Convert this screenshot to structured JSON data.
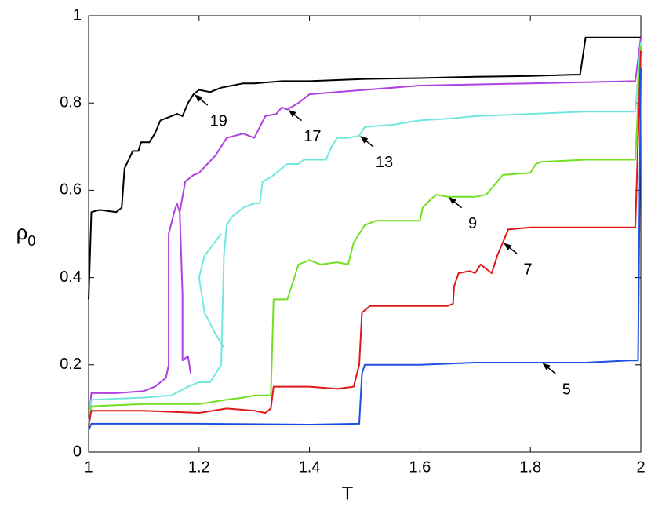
{
  "chart_data": {
    "type": "line",
    "xlabel": "T",
    "ylabel": "ρ",
    "ylabel_subscript": "0",
    "xlim": [
      1,
      2
    ],
    "xticks": [
      1,
      1.2,
      1.4,
      1.6,
      1.8,
      2
    ],
    "ylim": [
      0,
      1
    ],
    "yticks": [
      0,
      0.2,
      0.4,
      0.6,
      0.8,
      1
    ],
    "grid": false,
    "series": [
      {
        "name": "19",
        "color": "#000000",
        "x": [
          1,
          1.005,
          1.02,
          1.05,
          1.06,
          1.065,
          1.08,
          1.09,
          1.095,
          1.11,
          1.12,
          1.13,
          1.15,
          1.16,
          1.17,
          1.18,
          1.19,
          1.2,
          1.22,
          1.24,
          1.26,
          1.28,
          1.3,
          1.35,
          1.4,
          1.5,
          1.6,
          1.7,
          1.8,
          1.88,
          1.89,
          1.9,
          1.95,
          2
        ],
        "values": [
          0.35,
          0.55,
          0.555,
          0.55,
          0.56,
          0.65,
          0.69,
          0.69,
          0.71,
          0.71,
          0.73,
          0.76,
          0.77,
          0.775,
          0.77,
          0.8,
          0.82,
          0.83,
          0.825,
          0.835,
          0.84,
          0.845,
          0.845,
          0.85,
          0.85,
          0.855,
          0.857,
          0.86,
          0.862,
          0.865,
          0.865,
          0.95,
          0.95,
          0.95
        ]
      },
      {
        "name": "17",
        "color": "#b040e0",
        "x": [
          1,
          1.005,
          1.05,
          1.1,
          1.12,
          1.14,
          1.145,
          1.145,
          1.155,
          1.16,
          1.165,
          1.17,
          1.17,
          1.18,
          1.185,
          null,
          1.165,
          1.175,
          1.19,
          1.2,
          1.23,
          1.25,
          1.28,
          1.3,
          1.32,
          1.34,
          1.35,
          1.36,
          1.38,
          1.4,
          1.45,
          1.5,
          1.6,
          1.8,
          1.99,
          2
        ],
        "values": [
          0.06,
          0.135,
          0.135,
          0.14,
          0.15,
          0.17,
          0.2,
          0.5,
          0.55,
          0.57,
          0.55,
          0.36,
          0.21,
          0.22,
          0.18,
          null,
          0.55,
          0.62,
          0.635,
          0.64,
          0.68,
          0.72,
          0.73,
          0.72,
          0.77,
          0.775,
          0.79,
          0.785,
          0.8,
          0.82,
          0.825,
          0.83,
          0.84,
          0.845,
          0.85,
          0.95
        ]
      },
      {
        "name": "13",
        "color": "#70e8e0",
        "x": [
          1,
          1.005,
          1.1,
          1.15,
          1.18,
          1.2,
          1.22,
          1.24,
          1.245,
          1.25,
          1.26,
          1.27,
          1.28,
          1.3,
          1.31,
          1.315,
          1.33,
          1.34,
          1.36,
          1.38,
          1.39,
          1.43,
          1.44,
          1.45,
          1.47,
          1.49,
          1.5,
          1.55,
          1.6,
          1.66,
          1.7,
          1.8,
          1.9,
          1.99,
          2,
          null,
          1.245,
          1.23,
          1.21,
          1.2,
          1.21,
          1.24
        ],
        "values": [
          0.06,
          0.12,
          0.125,
          0.13,
          0.15,
          0.16,
          0.16,
          0.2,
          0.45,
          0.52,
          0.54,
          0.55,
          0.56,
          0.57,
          0.57,
          0.62,
          0.63,
          0.64,
          0.66,
          0.66,
          0.67,
          0.67,
          0.7,
          0.72,
          0.72,
          0.725,
          0.745,
          0.75,
          0.76,
          0.765,
          0.77,
          0.775,
          0.78,
          0.78,
          0.94,
          null,
          0.24,
          0.27,
          0.32,
          0.4,
          0.45,
          0.5
        ]
      },
      {
        "name": "9",
        "color": "#70e020",
        "x": [
          1,
          1.005,
          1.1,
          1.2,
          1.25,
          1.28,
          1.3,
          1.33,
          1.335,
          1.36,
          1.37,
          1.38,
          1.4,
          1.42,
          1.45,
          1.47,
          1.48,
          1.5,
          1.52,
          1.58,
          1.6,
          1.605,
          1.62,
          1.63,
          1.65,
          1.7,
          1.72,
          1.74,
          1.75,
          1.8,
          1.81,
          1.82,
          1.9,
          1.99,
          2
        ],
        "values": [
          0.06,
          0.105,
          0.11,
          0.11,
          0.12,
          0.125,
          0.13,
          0.13,
          0.35,
          0.35,
          0.39,
          0.43,
          0.44,
          0.43,
          0.435,
          0.43,
          0.48,
          0.52,
          0.53,
          0.53,
          0.53,
          0.56,
          0.58,
          0.59,
          0.585,
          0.585,
          0.59,
          0.62,
          0.635,
          0.64,
          0.66,
          0.665,
          0.67,
          0.67,
          0.93
        ]
      },
      {
        "name": "7",
        "color": "#e01818",
        "x": [
          1,
          1.005,
          1.1,
          1.2,
          1.25,
          1.3,
          1.32,
          1.33,
          1.335,
          1.4,
          1.45,
          1.48,
          1.49,
          1.495,
          1.51,
          1.6,
          1.65,
          1.66,
          1.662,
          1.67,
          1.69,
          1.7,
          1.71,
          1.73,
          1.74,
          1.75,
          1.76,
          1.8,
          1.9,
          1.99,
          2
        ],
        "values": [
          0.06,
          0.095,
          0.095,
          0.09,
          0.1,
          0.095,
          0.09,
          0.1,
          0.15,
          0.15,
          0.145,
          0.15,
          0.2,
          0.32,
          0.335,
          0.335,
          0.335,
          0.34,
          0.38,
          0.41,
          0.415,
          0.41,
          0.43,
          0.41,
          0.45,
          0.48,
          0.51,
          0.515,
          0.515,
          0.515,
          0.92
        ]
      },
      {
        "name": "5",
        "color": "#2050e0",
        "x": [
          1,
          1.005,
          1.2,
          1.4,
          1.49,
          1.495,
          1.5,
          1.55,
          1.6,
          1.7,
          1.82,
          1.9,
          1.98,
          1.995,
          2
        ],
        "values": [
          0.05,
          0.065,
          0.065,
          0.063,
          0.065,
          0.18,
          0.2,
          0.2,
          0.2,
          0.205,
          0.205,
          0.205,
          0.21,
          0.21,
          0.88
        ]
      }
    ]
  }
}
